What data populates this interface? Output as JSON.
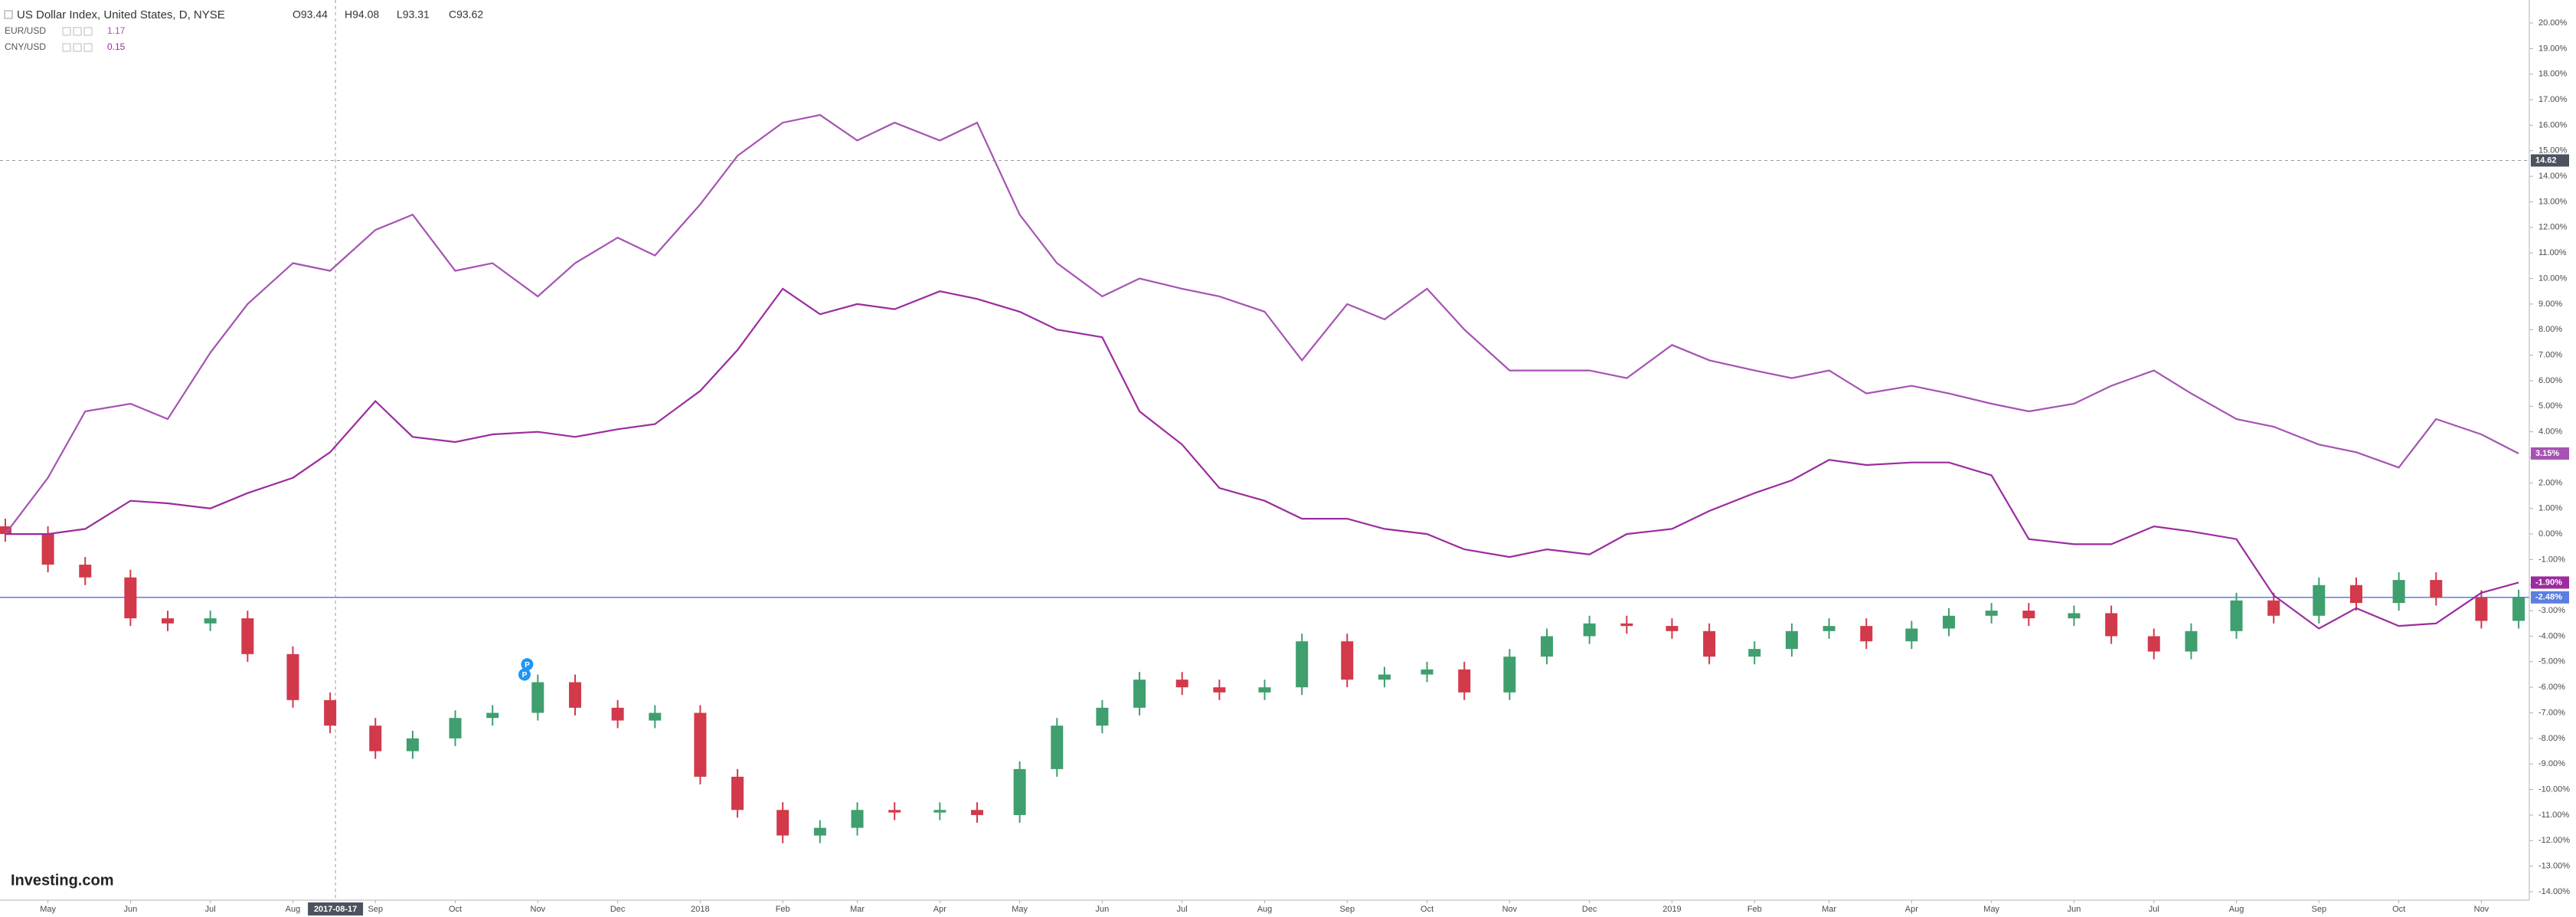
{
  "chart_data": {
    "type": "candlestick",
    "title": "US Dollar Index, United States, D, NYSE",
    "header_ohlc": [
      "O93.44",
      "H94.08",
      "L93.31",
      "C93.62"
    ],
    "x": [
      "2017-04-15",
      "2017-05-01",
      "2017-05-15",
      "2017-06-01",
      "2017-06-15",
      "2017-07-01",
      "2017-07-15",
      "2017-08-01",
      "2017-08-15",
      "2017-09-01",
      "2017-09-15",
      "2017-10-01",
      "2017-10-15",
      "2017-11-01",
      "2017-11-15",
      "2017-12-01",
      "2017-12-15",
      "2018-01-01",
      "2018-01-15",
      "2018-02-01",
      "2018-02-15",
      "2018-03-01",
      "2018-03-15",
      "2018-04-01",
      "2018-04-15",
      "2018-05-01",
      "2018-05-15",
      "2018-06-01",
      "2018-06-15",
      "2018-07-01",
      "2018-07-15",
      "2018-08-01",
      "2018-08-15",
      "2018-09-01",
      "2018-09-15",
      "2018-10-01",
      "2018-10-15",
      "2018-11-01",
      "2018-11-15",
      "2018-12-01",
      "2018-12-15",
      "2019-01-01",
      "2019-01-15",
      "2019-02-01",
      "2019-02-15",
      "2019-03-01",
      "2019-03-15",
      "2019-04-01",
      "2019-04-15",
      "2019-05-01",
      "2019-05-15",
      "2019-06-01",
      "2019-06-15",
      "2019-07-01",
      "2019-07-15",
      "2019-08-01",
      "2019-08-15",
      "2019-09-01",
      "2019-09-15",
      "2019-10-01",
      "2019-10-15",
      "2019-11-01",
      "2019-11-15"
    ],
    "open": [
      0.3,
      0,
      -1.2,
      -1.7,
      -3.3,
      -3.5,
      -3.3,
      -4.7,
      -6.5,
      -7.5,
      -8.5,
      -8.0,
      -7.2,
      -7.0,
      -5.8,
      -6.8,
      -7.3,
      -7.0,
      -9.5,
      -10.8,
      -11.8,
      -11.5,
      -10.8,
      -10.9,
      -10.8,
      -11.0,
      -9.2,
      -7.5,
      -6.8,
      -5.7,
      -6.0,
      -6.2,
      -6.0,
      -4.2,
      -5.7,
      -5.5,
      -5.3,
      -6.2,
      -4.8,
      -4.0,
      -3.5,
      -3.6,
      -3.8,
      -4.8,
      -4.5,
      -3.8,
      -3.6,
      -4.2,
      -3.7,
      -3.2,
      -3.0,
      -3.3,
      -3.1,
      -4.0,
      -4.6,
      -3.8,
      -2.6,
      -3.2,
      -2.0,
      -2.7,
      -1.8,
      -2.5,
      -3.4
    ],
    "high": [
      0.6,
      0.3,
      -0.9,
      -1.4,
      -3.0,
      -3.0,
      -3.0,
      -4.4,
      -6.2,
      -7.2,
      -7.7,
      -6.9,
      -6.7,
      -5.5,
      -5.5,
      -6.5,
      -6.7,
      -6.7,
      -9.2,
      -10.5,
      -11.2,
      -10.5,
      -10.5,
      -10.5,
      -10.5,
      -8.9,
      -7.2,
      -6.5,
      -5.4,
      -5.4,
      -5.7,
      -5.7,
      -3.9,
      -3.9,
      -5.2,
      -5.0,
      -5.0,
      -4.5,
      -3.7,
      -3.2,
      -3.2,
      -3.3,
      -3.5,
      -4.2,
      -3.5,
      -3.3,
      -3.3,
      -3.4,
      -2.9,
      -2.7,
      -2.7,
      -2.8,
      -2.8,
      -3.7,
      -3.5,
      -2.3,
      -2.3,
      -1.7,
      -1.7,
      -1.5,
      -1.5,
      -2.2,
      -2.18
    ],
    "low": [
      -0.3,
      -1.5,
      -2.0,
      -3.6,
      -3.8,
      -3.8,
      -5.0,
      -6.8,
      -7.8,
      -8.8,
      -8.8,
      -8.3,
      -7.5,
      -7.3,
      -7.1,
      -7.6,
      -7.6,
      -9.8,
      -11.1,
      -12.1,
      -12.1,
      -11.8,
      -11.2,
      -11.2,
      -11.3,
      -11.3,
      -9.5,
      -7.8,
      -7.1,
      -6.3,
      -6.5,
      -6.5,
      -6.3,
      -6.0,
      -6.0,
      -5.8,
      -6.5,
      -6.5,
      -5.1,
      -4.3,
      -3.9,
      -4.1,
      -5.1,
      -5.1,
      -4.8,
      -4.1,
      -4.5,
      -4.5,
      -4.0,
      -3.5,
      -3.6,
      -3.6,
      -4.3,
      -4.9,
      -4.9,
      -4.1,
      -3.5,
      -3.5,
      -3.0,
      -3.0,
      -2.8,
      -3.7,
      -3.7
    ],
    "close": [
      0,
      -1.2,
      -1.7,
      -3.3,
      -3.5,
      -3.3,
      -4.7,
      -6.5,
      -7.5,
      -8.5,
      -8.0,
      -7.2,
      -7.0,
      -5.8,
      -6.8,
      -7.3,
      -7.0,
      -9.5,
      -10.8,
      -11.8,
      -11.5,
      -10.8,
      -10.9,
      -10.8,
      -11.0,
      -9.2,
      -7.5,
      -6.8,
      -5.7,
      -6.0,
      -6.2,
      -6.0,
      -4.2,
      -5.7,
      -5.5,
      -5.3,
      -6.2,
      -4.8,
      -4.0,
      -3.5,
      -3.6,
      -3.8,
      -4.8,
      -4.5,
      -3.8,
      -3.6,
      -4.2,
      -3.7,
      -3.2,
      -3.0,
      -3.3,
      -3.1,
      -4.0,
      -4.6,
      -3.8,
      -2.6,
      -3.2,
      -2.0,
      -2.7,
      -1.8,
      -2.5,
      -3.4,
      -2.48
    ],
    "up_color": "#3f9f6e",
    "down_color": "#d2394b",
    "last_label": {
      "value": -2.48,
      "label": "-2.48%"
    },
    "price_line_color": "#5b7fe0",
    "series": [
      {
        "name": "EUR/USD",
        "color": "#a653b3",
        "legend_value": "1.17",
        "last_label": {
          "value": 3.15,
          "label": "3.15%"
        },
        "values": [
          0,
          2.2,
          4.8,
          5.1,
          4.5,
          7.1,
          9.0,
          10.6,
          10.3,
          11.9,
          12.5,
          10.3,
          10.6,
          9.3,
          10.6,
          11.6,
          10.9,
          12.9,
          14.8,
          16.1,
          16.4,
          15.4,
          16.1,
          15.4,
          16.1,
          12.5,
          10.6,
          9.3,
          10.0,
          9.6,
          9.3,
          8.7,
          6.8,
          9.0,
          8.4,
          9.6,
          8.0,
          6.4,
          6.4,
          6.4,
          6.1,
          7.4,
          6.8,
          6.4,
          6.1,
          6.4,
          5.5,
          5.8,
          5.5,
          5.1,
          4.8,
          5.1,
          5.8,
          6.4,
          5.5,
          4.5,
          4.2,
          3.5,
          3.2,
          2.6,
          4.5,
          3.9,
          3.15
        ]
      },
      {
        "name": "CNY/USD",
        "color": "#9b2c9f",
        "legend_value": "0.15",
        "last_label": {
          "value": -1.9,
          "label": "-1.90%"
        },
        "values": [
          0,
          0,
          0.2,
          1.3,
          1.2,
          1.0,
          1.6,
          2.2,
          3.2,
          5.2,
          3.8,
          3.6,
          3.9,
          4.0,
          3.8,
          4.1,
          4.3,
          5.6,
          7.2,
          9.6,
          8.6,
          9.0,
          8.8,
          9.5,
          9.2,
          8.7,
          8.0,
          7.7,
          4.8,
          3.5,
          1.8,
          1.3,
          0.6,
          0.6,
          0.2,
          0,
          -0.6,
          -0.9,
          -0.6,
          -0.8,
          0,
          0.2,
          0.9,
          1.6,
          2.1,
          2.9,
          2.7,
          2.8,
          2.8,
          2.3,
          -0.2,
          -0.4,
          -0.4,
          0.3,
          0.1,
          -0.2,
          -2.4,
          -3.7,
          -2.9,
          -3.6,
          -3.5,
          -2.3,
          -1.9
        ]
      }
    ],
    "xlim": [
      "2017-04-13",
      "2019-11-19"
    ],
    "ylim": [
      -14.33,
      20.9
    ],
    "xticks": [
      {
        "value": "2017-05-01",
        "label": "May"
      },
      {
        "value": "2017-06-01",
        "label": "Jun"
      },
      {
        "value": "2017-07-01",
        "label": "Jul"
      },
      {
        "value": "2017-08-01",
        "label": "Aug"
      },
      {
        "value": "2017-09-01",
        "label": "Sep"
      },
      {
        "value": "2017-10-01",
        "label": "Oct"
      },
      {
        "value": "2017-11-01",
        "label": "Nov"
      },
      {
        "value": "2017-12-01",
        "label": "Dec"
      },
      {
        "value": "2018-01-01",
        "label": "2018"
      },
      {
        "value": "2018-02-01",
        "label": "Feb"
      },
      {
        "value": "2018-03-01",
        "label": "Mar"
      },
      {
        "value": "2018-04-01",
        "label": "Apr"
      },
      {
        "value": "2018-05-01",
        "label": "May"
      },
      {
        "value": "2018-06-01",
        "label": "Jun"
      },
      {
        "value": "2018-07-01",
        "label": "Jul"
      },
      {
        "value": "2018-08-01",
        "label": "Aug"
      },
      {
        "value": "2018-09-01",
        "label": "Sep"
      },
      {
        "value": "2018-10-01",
        "label": "Oct"
      },
      {
        "value": "2018-11-01",
        "label": "Nov"
      },
      {
        "value": "2018-12-01",
        "label": "Dec"
      },
      {
        "value": "2019-01-01",
        "label": "2019"
      },
      {
        "value": "2019-02-01",
        "label": "Feb"
      },
      {
        "value": "2019-03-01",
        "label": "Mar"
      },
      {
        "value": "2019-04-01",
        "label": "Apr"
      },
      {
        "value": "2019-05-01",
        "label": "May"
      },
      {
        "value": "2019-06-01",
        "label": "Jun"
      },
      {
        "value": "2019-07-01",
        "label": "Jul"
      },
      {
        "value": "2019-08-01",
        "label": "Aug"
      },
      {
        "value": "2019-09-01",
        "label": "Sep"
      },
      {
        "value": "2019-10-01",
        "label": "Oct"
      },
      {
        "value": "2019-11-01",
        "label": "Nov"
      }
    ],
    "yticks": [
      {
        "value": -14,
        "label": "-14.00%"
      },
      {
        "value": -13,
        "label": "-13.00%"
      },
      {
        "value": -12,
        "label": "-12.00%"
      },
      {
        "value": -11,
        "label": "-11.00%"
      },
      {
        "value": -10,
        "label": "-10.00%"
      },
      {
        "value": -9,
        "label": "-9.00%"
      },
      {
        "value": -8,
        "label": "-8.00%"
      },
      {
        "value": -7,
        "label": "-7.00%"
      },
      {
        "value": -6,
        "label": "-6.00%"
      },
      {
        "value": -5,
        "label": "-5.00%"
      },
      {
        "value": -4,
        "label": "-4.00%"
      },
      {
        "value": -3,
        "label": "-3.00%"
      },
      {
        "value": -2,
        "label": "-2.00%"
      },
      {
        "value": -1,
        "label": "-1.00%"
      },
      {
        "value": 0,
        "label": "0.00%"
      },
      {
        "value": 1,
        "label": "1.00%"
      },
      {
        "value": 2,
        "label": "2.00%"
      },
      {
        "value": 3,
        "label": "3.00%"
      },
      {
        "value": 4,
        "label": "4.00%"
      },
      {
        "value": 5,
        "label": "5.00%"
      },
      {
        "value": 6,
        "label": "6.00%"
      },
      {
        "value": 7,
        "label": "7.00%"
      },
      {
        "value": 8,
        "label": "8.00%"
      },
      {
        "value": 9,
        "label": "9.00%"
      },
      {
        "value": 10,
        "label": "10.00%"
      },
      {
        "value": 11,
        "label": "11.00%"
      },
      {
        "value": 12,
        "label": "12.00%"
      },
      {
        "value": 13,
        "label": "13.00%"
      },
      {
        "value": 14,
        "label": "14.00%"
      },
      {
        "value": 15,
        "label": "15.00%"
      },
      {
        "value": 16,
        "label": "16.00%"
      },
      {
        "value": 17,
        "label": "17.00%"
      },
      {
        "value": 18,
        "label": "18.00%"
      },
      {
        "value": 19,
        "label": "19.00%"
      },
      {
        "value": 20,
        "label": "20.00%"
      }
    ],
    "crosshair": {
      "x": "2017-08-17",
      "y": 14.62
    },
    "events": [
      {
        "x": "2017-10-28",
        "y": -5.1,
        "label": "P"
      },
      {
        "x": "2017-10-27",
        "y": -5.5,
        "label": "P"
      }
    ],
    "logo": "Investing.com"
  }
}
